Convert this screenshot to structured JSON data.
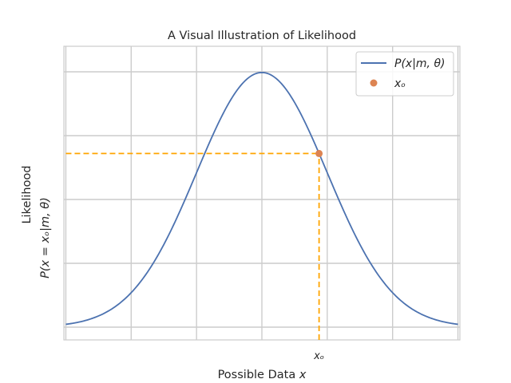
{
  "chart_data": {
    "type": "line",
    "title": "A Visual Illustration of Likelihood",
    "xlabel": {
      "text": "Possible Data ",
      "var": "x"
    },
    "ylabel": {
      "line1": "Likelihood",
      "line2": "P(x = xₒ|m, θ)"
    },
    "x_tick_labels": [
      {
        "x": 0.875,
        "text": "xₒ"
      }
    ],
    "xlim": [
      -3.03,
      3.03
    ],
    "ylim": [
      -0.02,
      0.44
    ],
    "grid": true,
    "x_gridlines": [
      -3,
      -2,
      -1,
      0,
      1,
      2,
      3
    ],
    "y_gridlines": [
      0,
      0.1,
      0.2,
      0.3,
      0.4
    ],
    "legend_position": "top-right",
    "series": [
      {
        "name": "P(x|m, θ)",
        "kind": "line",
        "color": "#4c72b0",
        "distribution": "normal",
        "mean": 0,
        "sd": 1,
        "x_range": [
          -3,
          3
        ]
      },
      {
        "name": "xₒ",
        "kind": "point",
        "color": "#dd8452",
        "points": [
          {
            "x": 0.875,
            "y": 0.272
          }
        ]
      }
    ],
    "reference_lines": [
      {
        "orientation": "horizontal",
        "y": 0.272,
        "x_from": -3,
        "x_to": 0.875,
        "style": "dashed",
        "color": "#ffa500"
      },
      {
        "orientation": "vertical",
        "x": 0.875,
        "y_from": -0.02,
        "y_to": 0.272,
        "style": "dashed",
        "color": "#ffa500"
      }
    ]
  }
}
